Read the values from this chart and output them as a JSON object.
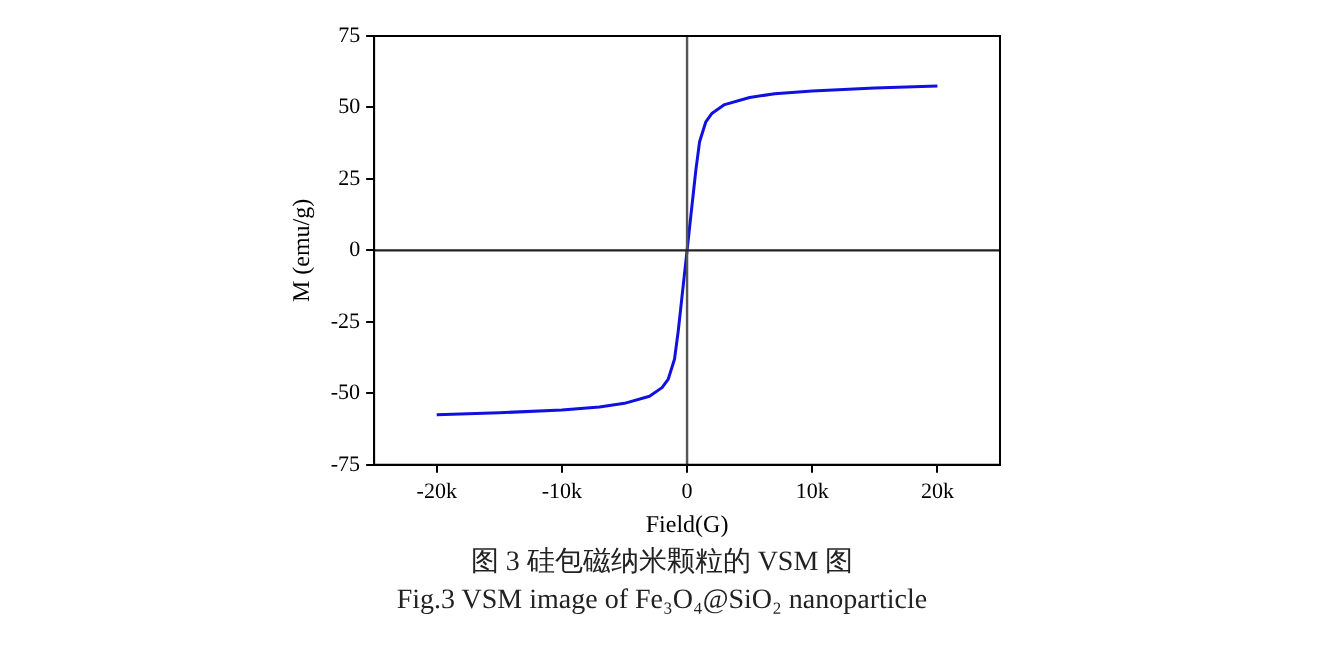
{
  "chart_data": {
    "type": "line",
    "xlabel": "Field(G)",
    "ylabel": "M (emu/g)",
    "x": [
      -20000,
      -15000,
      -10000,
      -7000,
      -5000,
      -3000,
      -2000,
      -1500,
      -1000,
      -700,
      -500,
      -300,
      -150,
      0,
      150,
      300,
      500,
      700,
      1000,
      1500,
      2000,
      3000,
      5000,
      7000,
      10000,
      15000,
      20000
    ],
    "series": [
      {
        "color": "#1010e0",
        "values": [
          -57.5,
          -56.8,
          -55.8,
          -54.8,
          -53.5,
          -51,
          -48,
          -45,
          -38,
          -28,
          -20,
          -12,
          -6,
          0,
          6,
          12,
          20,
          28,
          38,
          45,
          48,
          51,
          53.5,
          54.8,
          55.8,
          56.8,
          57.5
        ]
      }
    ],
    "xlim": [
      -25000,
      25000
    ],
    "xticks": [
      {
        "value": -20000,
        "label": "-20k"
      },
      {
        "value": -10000,
        "label": "-10k"
      },
      0,
      {
        "value": 10000,
        "label": "10k"
      },
      {
        "value": 20000,
        "label": "20k"
      }
    ],
    "ylim": [
      -75,
      75
    ],
    "yticks": [
      -75,
      -50,
      -25,
      0,
      25,
      50,
      75
    ],
    "ref_lines": [
      {
        "axis": "x",
        "value": 0,
        "color": "#555555"
      },
      {
        "axis": "y",
        "value": 0,
        "color": "#222222"
      }
    ],
    "grid": false,
    "legend": false,
    "marker": "none",
    "line_style": "solid",
    "annotations": [
      "图 3 硅包磁纳米颗粒的 VSM 图",
      "Fig.3 VSM image of Fe₃O₄@SiO₂ nanoparticle"
    ]
  }
}
